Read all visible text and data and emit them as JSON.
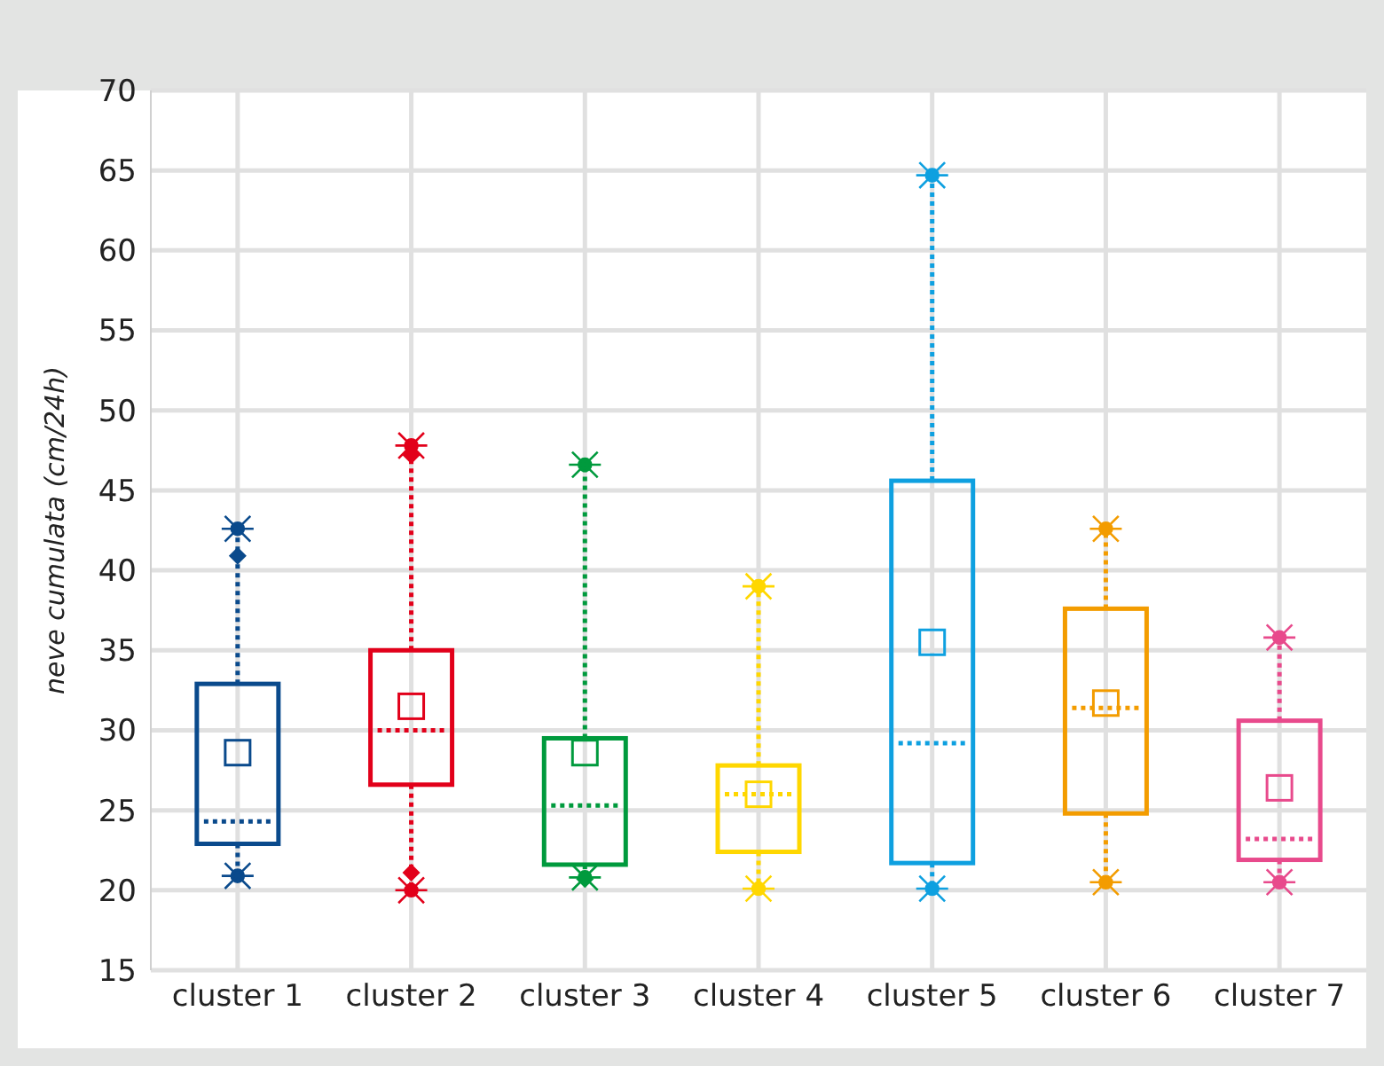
{
  "chart_data": {
    "type": "box",
    "ylabel": "neve cumulata (cm/24h)",
    "categories": [
      "cluster 1",
      "cluster 2",
      "cluster 3",
      "cluster 4",
      "cluster 5",
      "cluster 6",
      "cluster 7"
    ],
    "colors": [
      "#0a4a8c",
      "#e2001a",
      "#009a3d",
      "#ffd700",
      "#0ea0e0",
      "#f39c00",
      "#e84a8c"
    ],
    "boxes": [
      {
        "low": 20.9,
        "q1": 22.9,
        "median": 24.3,
        "q3": 32.9,
        "high": 42.6,
        "mean": 28.6,
        "outliers": [
          40.9
        ]
      },
      {
        "low": 20.0,
        "q1": 26.6,
        "median": 30.0,
        "q3": 35.0,
        "high": 47.8,
        "mean": 31.5,
        "outliers": [
          47.2,
          21.1
        ]
      },
      {
        "low": 20.8,
        "q1": 21.6,
        "median": 25.3,
        "q3": 29.5,
        "high": 46.6,
        "mean": 28.6,
        "outliers": [
          20.7
        ]
      },
      {
        "low": 20.1,
        "q1": 22.4,
        "median": 26.0,
        "q3": 27.8,
        "high": 39.0,
        "mean": 26.0
      },
      {
        "low": 20.1,
        "q1": 21.7,
        "median": 29.2,
        "q3": 45.6,
        "high": 64.7,
        "mean": 35.5
      },
      {
        "low": 20.5,
        "q1": 24.8,
        "median": 31.4,
        "q3": 37.6,
        "high": 42.6,
        "mean": 31.7
      },
      {
        "low": 20.5,
        "q1": 21.9,
        "median": 23.2,
        "q3": 30.6,
        "high": 35.8,
        "mean": 26.4
      }
    ],
    "ylim": [
      15,
      70
    ],
    "yticks": [
      15,
      20,
      25,
      30,
      35,
      40,
      45,
      50,
      55,
      60,
      65,
      70
    ],
    "grid": true
  }
}
